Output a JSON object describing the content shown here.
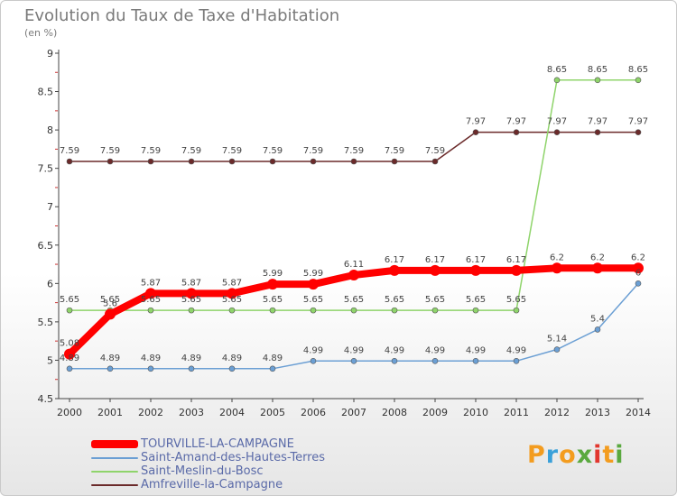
{
  "chart_data": {
    "type": "line",
    "title": "Evolution du Taux de Taxe d'Habitation",
    "subtitle": "(en %)",
    "x": [
      "2000",
      "2001",
      "2002",
      "2003",
      "2004",
      "2005",
      "2006",
      "2007",
      "2008",
      "2009",
      "2010",
      "2011",
      "2012",
      "2013",
      "2014"
    ],
    "ylim": [
      4.5,
      9
    ],
    "yticks": [
      4.5,
      5,
      5.5,
      6,
      6.5,
      7,
      7.5,
      8,
      8.5,
      9
    ],
    "ytick_labels": [
      "4.5",
      "5",
      "5.5",
      "6",
      "6.5",
      "7",
      "7.5",
      "8",
      "8.5",
      "9"
    ],
    "series": [
      {
        "name": "TOURVILLE-LA-CAMPAGNE",
        "color": "#ff0000",
        "values": [
          5.08,
          5.6,
          5.87,
          5.87,
          5.87,
          5.99,
          5.99,
          6.11,
          6.17,
          6.17,
          6.17,
          6.17,
          6.2,
          6.2,
          6.2
        ],
        "labels": [
          "5.08",
          "5.6",
          "5.87",
          "5.87",
          "5.87",
          "5.99",
          "5.99",
          "6.11",
          "6.17",
          "6.17",
          "6.17",
          "6.17",
          "6.2",
          "6.2",
          "6.2"
        ]
      },
      {
        "name": "Saint-Amand-des-Hautes-Terres",
        "color": "#6b9fd4",
        "values": [
          4.89,
          4.89,
          4.89,
          4.89,
          4.89,
          4.89,
          4.99,
          4.99,
          4.99,
          4.99,
          4.99,
          4.99,
          5.14,
          5.4,
          6
        ],
        "labels": [
          "4.89",
          "4.89",
          "4.89",
          "4.89",
          "4.89",
          "4.89",
          "4.99",
          "4.99",
          "4.99",
          "4.99",
          "4.99",
          "4.99",
          "5.14",
          "5.4",
          "6"
        ]
      },
      {
        "name": "Saint-Meslin-du-Bosc",
        "color": "#8fd46b",
        "values": [
          5.65,
          5.65,
          5.65,
          5.65,
          5.65,
          5.65,
          5.65,
          5.65,
          5.65,
          5.65,
          5.65,
          5.65,
          8.65,
          8.65,
          8.65
        ],
        "labels": [
          "5.65",
          "5.65",
          "5.65",
          "5.65",
          "5.65",
          "5.65",
          "5.65",
          "5.65",
          "5.65",
          "5.65",
          "5.65",
          "5.65",
          "8.65",
          "8.65",
          "8.65"
        ]
      },
      {
        "name": "Amfreville-la-Campagne",
        "color": "#6b2a2a",
        "values": [
          7.59,
          7.59,
          7.59,
          7.59,
          7.59,
          7.59,
          7.59,
          7.59,
          7.59,
          7.59,
          7.97,
          7.97,
          7.97,
          7.97,
          7.97
        ],
        "labels": [
          "7.59",
          "7.59",
          "7.59",
          "7.59",
          "7.59",
          "7.59",
          "7.59",
          "7.59",
          "7.59",
          "7.59",
          "7.97",
          "7.97",
          "7.97",
          "7.97",
          "7.97"
        ]
      }
    ],
    "legend": {
      "placement": "bottom-left"
    },
    "grid": false
  },
  "logo": {
    "letters": [
      "P",
      "r",
      "o",
      "x",
      "i",
      "t",
      "i"
    ],
    "colors": [
      "#f39c1f",
      "#3aa0d9",
      "#f39c1f",
      "#5aa93f",
      "#e2372f",
      "#f39c1f",
      "#5aa93f"
    ]
  }
}
